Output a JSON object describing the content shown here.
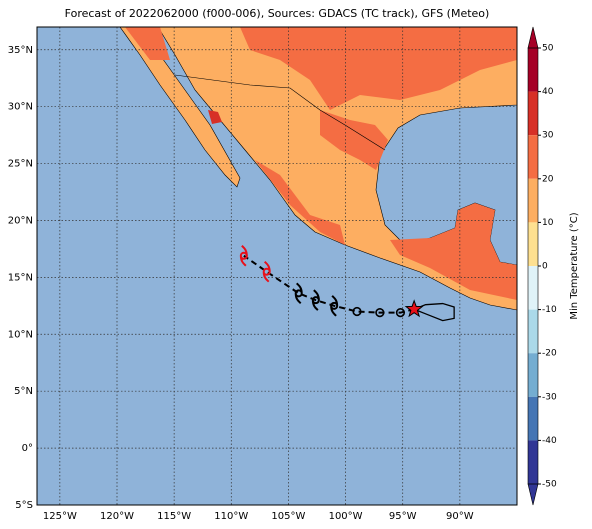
{
  "title": "Forecast of 2022062000 (f000-006), Sources: GDACS (TC track), GFS (Meteo)",
  "map": {
    "lon_range": [
      -127,
      -85
    ],
    "lat_range": [
      -5,
      37
    ],
    "lon_ticks": [
      {
        "value": -125,
        "label": "125°W"
      },
      {
        "value": -120,
        "label": "120°W"
      },
      {
        "value": -115,
        "label": "115°W"
      },
      {
        "value": -110,
        "label": "110°W"
      },
      {
        "value": -105,
        "label": "105°W"
      },
      {
        "value": -100,
        "label": "100°W"
      },
      {
        "value": -95,
        "label": "95°W"
      },
      {
        "value": -90,
        "label": "90°W"
      }
    ],
    "lat_ticks": [
      {
        "value": 35,
        "label": "35°N"
      },
      {
        "value": 30,
        "label": "30°N"
      },
      {
        "value": 25,
        "label": "25°N"
      },
      {
        "value": 20,
        "label": "20°N"
      },
      {
        "value": 15,
        "label": "15°N"
      },
      {
        "value": 10,
        "label": "10°N"
      },
      {
        "value": 5,
        "label": "5°N"
      },
      {
        "value": 0,
        "label": "0°"
      },
      {
        "value": -5,
        "label": "5°S"
      }
    ],
    "ocean_color": "#8fb3d9"
  },
  "colorbar": {
    "label": "Min Temperature (°C)",
    "ticks": [
      50,
      40,
      30,
      20,
      10,
      0,
      -10,
      -20,
      -30,
      -40,
      -50
    ],
    "colors": [
      "#a50026",
      "#d73027",
      "#f46d43",
      "#fdae61",
      "#fee090",
      "#e0f3f8",
      "#abd9e9",
      "#74add1",
      "#4575b4",
      "#313695"
    ]
  },
  "observed_track": {
    "lon": [
      -94,
      -93,
      -91.5,
      -90.5,
      -90.5,
      -91.5,
      -93,
      -94
    ],
    "lat": [
      12.2,
      12.6,
      12.7,
      12.4,
      11.4,
      11.2,
      11.8,
      12.2
    ],
    "color": "#000000"
  },
  "forecast_track": [
    {
      "lon": -94,
      "lat": 12.2,
      "kind": "star",
      "color": "#e8101a"
    },
    {
      "lon": -95.2,
      "lat": 11.9,
      "kind": "circle",
      "color": "#000000"
    },
    {
      "lon": -97,
      "lat": 11.9,
      "kind": "circle",
      "color": "#000000"
    },
    {
      "lon": -99,
      "lat": 12.0,
      "kind": "circle",
      "color": "#000000"
    },
    {
      "lon": -101,
      "lat": 12.5,
      "kind": "storm",
      "color": "#000000"
    },
    {
      "lon": -102.6,
      "lat": 13.0,
      "kind": "storm",
      "color": "#000000"
    },
    {
      "lon": -104.1,
      "lat": 13.6,
      "kind": "storm",
      "color": "#000000"
    },
    {
      "lon": -106.9,
      "lat": 15.5,
      "kind": "storm",
      "color": "#e8101a"
    },
    {
      "lon": -108.9,
      "lat": 16.9,
      "kind": "storm",
      "color": "#e8101a"
    }
  ]
}
